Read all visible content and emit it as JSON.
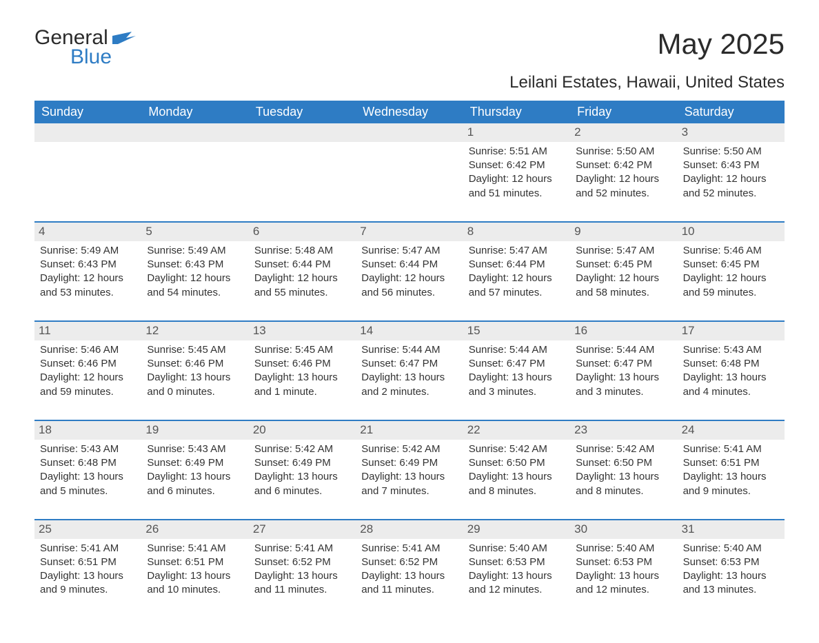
{
  "logo": {
    "word1": "General",
    "word2": "Blue"
  },
  "title": "May 2025",
  "location": "Leilani Estates, Hawaii, United States",
  "colors": {
    "accent": "#2e7cc4",
    "header_bg": "#2e7cc4",
    "header_text": "#ffffff",
    "daynum_bg": "#ececec",
    "text": "#333333",
    "bg": "#ffffff"
  },
  "day_labels": [
    "Sunday",
    "Monday",
    "Tuesday",
    "Wednesday",
    "Thursday",
    "Friday",
    "Saturday"
  ],
  "weeks": [
    [
      null,
      null,
      null,
      null,
      {
        "n": "1",
        "sunrise": "Sunrise: 5:51 AM",
        "sunset": "Sunset: 6:42 PM",
        "daylight": "Daylight: 12 hours and 51 minutes."
      },
      {
        "n": "2",
        "sunrise": "Sunrise: 5:50 AM",
        "sunset": "Sunset: 6:42 PM",
        "daylight": "Daylight: 12 hours and 52 minutes."
      },
      {
        "n": "3",
        "sunrise": "Sunrise: 5:50 AM",
        "sunset": "Sunset: 6:43 PM",
        "daylight": "Daylight: 12 hours and 52 minutes."
      }
    ],
    [
      {
        "n": "4",
        "sunrise": "Sunrise: 5:49 AM",
        "sunset": "Sunset: 6:43 PM",
        "daylight": "Daylight: 12 hours and 53 minutes."
      },
      {
        "n": "5",
        "sunrise": "Sunrise: 5:49 AM",
        "sunset": "Sunset: 6:43 PM",
        "daylight": "Daylight: 12 hours and 54 minutes."
      },
      {
        "n": "6",
        "sunrise": "Sunrise: 5:48 AM",
        "sunset": "Sunset: 6:44 PM",
        "daylight": "Daylight: 12 hours and 55 minutes."
      },
      {
        "n": "7",
        "sunrise": "Sunrise: 5:47 AM",
        "sunset": "Sunset: 6:44 PM",
        "daylight": "Daylight: 12 hours and 56 minutes."
      },
      {
        "n": "8",
        "sunrise": "Sunrise: 5:47 AM",
        "sunset": "Sunset: 6:44 PM",
        "daylight": "Daylight: 12 hours and 57 minutes."
      },
      {
        "n": "9",
        "sunrise": "Sunrise: 5:47 AM",
        "sunset": "Sunset: 6:45 PM",
        "daylight": "Daylight: 12 hours and 58 minutes."
      },
      {
        "n": "10",
        "sunrise": "Sunrise: 5:46 AM",
        "sunset": "Sunset: 6:45 PM",
        "daylight": "Daylight: 12 hours and 59 minutes."
      }
    ],
    [
      {
        "n": "11",
        "sunrise": "Sunrise: 5:46 AM",
        "sunset": "Sunset: 6:46 PM",
        "daylight": "Daylight: 12 hours and 59 minutes."
      },
      {
        "n": "12",
        "sunrise": "Sunrise: 5:45 AM",
        "sunset": "Sunset: 6:46 PM",
        "daylight": "Daylight: 13 hours and 0 minutes."
      },
      {
        "n": "13",
        "sunrise": "Sunrise: 5:45 AM",
        "sunset": "Sunset: 6:46 PM",
        "daylight": "Daylight: 13 hours and 1 minute."
      },
      {
        "n": "14",
        "sunrise": "Sunrise: 5:44 AM",
        "sunset": "Sunset: 6:47 PM",
        "daylight": "Daylight: 13 hours and 2 minutes."
      },
      {
        "n": "15",
        "sunrise": "Sunrise: 5:44 AM",
        "sunset": "Sunset: 6:47 PM",
        "daylight": "Daylight: 13 hours and 3 minutes."
      },
      {
        "n": "16",
        "sunrise": "Sunrise: 5:44 AM",
        "sunset": "Sunset: 6:47 PM",
        "daylight": "Daylight: 13 hours and 3 minutes."
      },
      {
        "n": "17",
        "sunrise": "Sunrise: 5:43 AM",
        "sunset": "Sunset: 6:48 PM",
        "daylight": "Daylight: 13 hours and 4 minutes."
      }
    ],
    [
      {
        "n": "18",
        "sunrise": "Sunrise: 5:43 AM",
        "sunset": "Sunset: 6:48 PM",
        "daylight": "Daylight: 13 hours and 5 minutes."
      },
      {
        "n": "19",
        "sunrise": "Sunrise: 5:43 AM",
        "sunset": "Sunset: 6:49 PM",
        "daylight": "Daylight: 13 hours and 6 minutes."
      },
      {
        "n": "20",
        "sunrise": "Sunrise: 5:42 AM",
        "sunset": "Sunset: 6:49 PM",
        "daylight": "Daylight: 13 hours and 6 minutes."
      },
      {
        "n": "21",
        "sunrise": "Sunrise: 5:42 AM",
        "sunset": "Sunset: 6:49 PM",
        "daylight": "Daylight: 13 hours and 7 minutes."
      },
      {
        "n": "22",
        "sunrise": "Sunrise: 5:42 AM",
        "sunset": "Sunset: 6:50 PM",
        "daylight": "Daylight: 13 hours and 8 minutes."
      },
      {
        "n": "23",
        "sunrise": "Sunrise: 5:42 AM",
        "sunset": "Sunset: 6:50 PM",
        "daylight": "Daylight: 13 hours and 8 minutes."
      },
      {
        "n": "24",
        "sunrise": "Sunrise: 5:41 AM",
        "sunset": "Sunset: 6:51 PM",
        "daylight": "Daylight: 13 hours and 9 minutes."
      }
    ],
    [
      {
        "n": "25",
        "sunrise": "Sunrise: 5:41 AM",
        "sunset": "Sunset: 6:51 PM",
        "daylight": "Daylight: 13 hours and 9 minutes."
      },
      {
        "n": "26",
        "sunrise": "Sunrise: 5:41 AM",
        "sunset": "Sunset: 6:51 PM",
        "daylight": "Daylight: 13 hours and 10 minutes."
      },
      {
        "n": "27",
        "sunrise": "Sunrise: 5:41 AM",
        "sunset": "Sunset: 6:52 PM",
        "daylight": "Daylight: 13 hours and 11 minutes."
      },
      {
        "n": "28",
        "sunrise": "Sunrise: 5:41 AM",
        "sunset": "Sunset: 6:52 PM",
        "daylight": "Daylight: 13 hours and 11 minutes."
      },
      {
        "n": "29",
        "sunrise": "Sunrise: 5:40 AM",
        "sunset": "Sunset: 6:53 PM",
        "daylight": "Daylight: 13 hours and 12 minutes."
      },
      {
        "n": "30",
        "sunrise": "Sunrise: 5:40 AM",
        "sunset": "Sunset: 6:53 PM",
        "daylight": "Daylight: 13 hours and 12 minutes."
      },
      {
        "n": "31",
        "sunrise": "Sunrise: 5:40 AM",
        "sunset": "Sunset: 6:53 PM",
        "daylight": "Daylight: 13 hours and 13 minutes."
      }
    ]
  ]
}
